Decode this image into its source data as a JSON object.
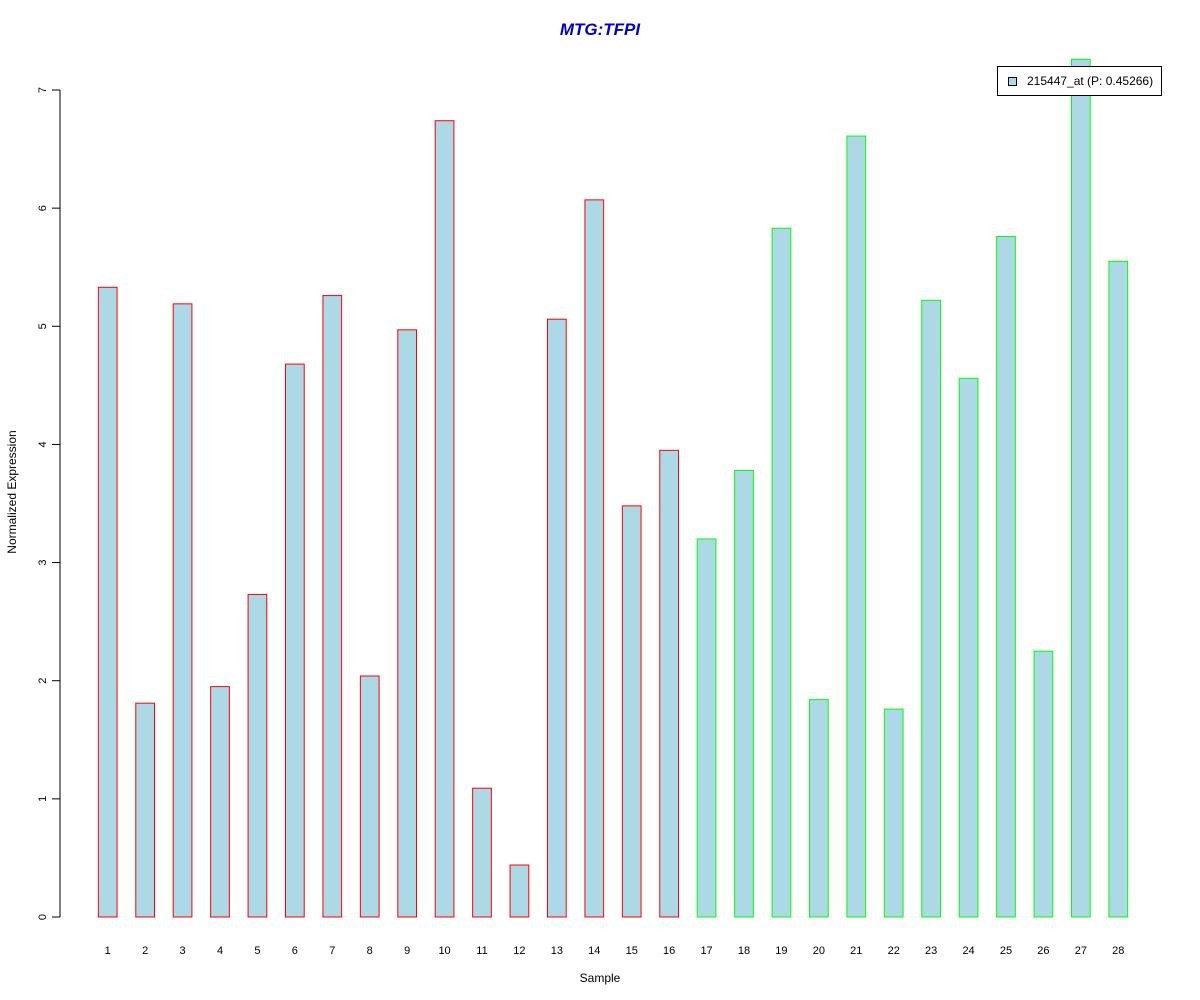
{
  "chart_data": {
    "type": "bar",
    "title": "MTG:TFPI",
    "xlabel": "Sample",
    "ylabel": "Normalized Expression",
    "categories": [
      "1",
      "2",
      "3",
      "4",
      "5",
      "6",
      "7",
      "8",
      "9",
      "10",
      "11",
      "12",
      "13",
      "14",
      "15",
      "16",
      "17",
      "18",
      "19",
      "20",
      "21",
      "22",
      "23",
      "24",
      "25",
      "26",
      "27",
      "28"
    ],
    "series": [
      {
        "name": "215447_at (P: 0.45266)",
        "values": [
          5.33,
          1.81,
          5.19,
          1.95,
          2.73,
          4.68,
          5.26,
          2.04,
          4.97,
          6.74,
          1.09,
          0.44,
          5.06,
          6.07,
          3.48,
          3.95,
          3.2,
          3.78,
          5.83,
          1.84,
          6.61,
          1.76,
          5.22,
          4.56,
          5.76,
          2.25,
          7.26,
          5.55
        ]
      }
    ],
    "ylim": [
      0,
      7
    ],
    "yticks": [
      "0",
      "1",
      "2",
      "3",
      "4",
      "5",
      "6",
      "7"
    ],
    "grid": false,
    "legend_position": "top-right",
    "colors": {
      "fill": "#ADD8E6",
      "title": "#0000CC",
      "border_group1": "#FF0000",
      "border_group2": "#00FF00",
      "group1_count": 16
    }
  }
}
